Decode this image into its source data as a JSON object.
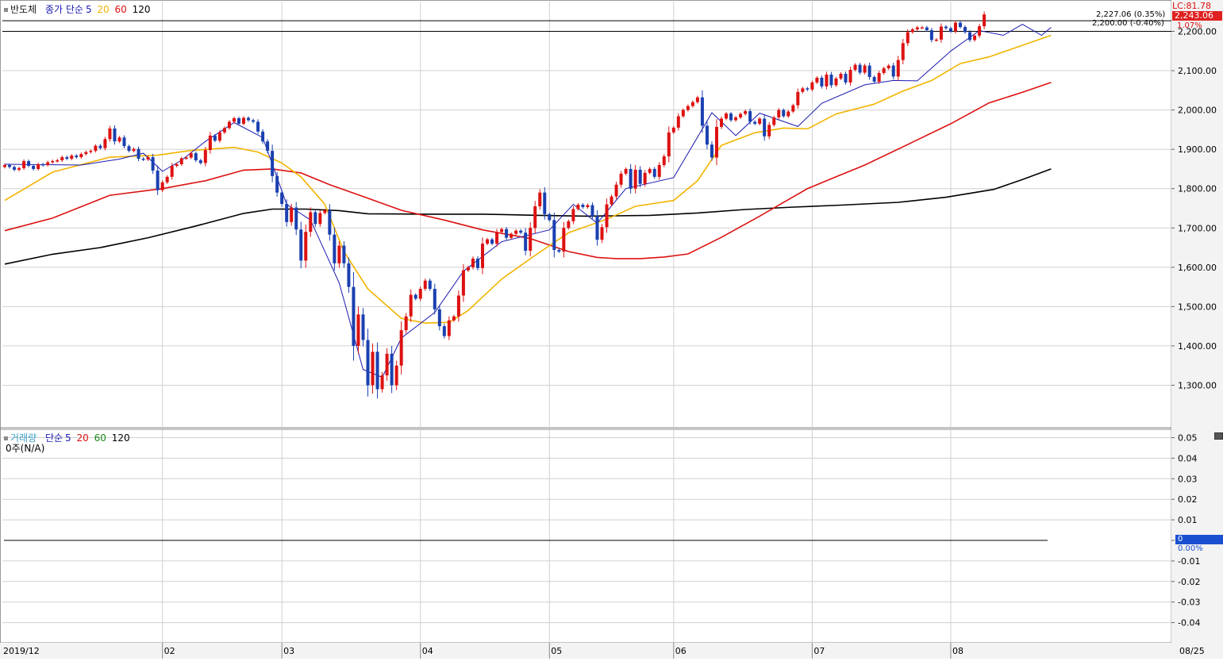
{
  "price_legend": {
    "name": "반도체",
    "type": "종가 단순",
    "p1": "5",
    "p2": "20",
    "p3": "60",
    "p4": "120",
    "colors": {
      "ma5": "#1a1ab0",
      "ma20": "#f2b400",
      "ma60": "#dd1111",
      "ma120": "#000000"
    }
  },
  "volume_legend": {
    "name": "거래량",
    "type": "단순",
    "p1": "5",
    "p2": "20",
    "p3": "60",
    "p4": "120",
    "value": "0주(N/A)"
  },
  "markers": {
    "lc": "LC:81.78",
    "current": "2,243.06",
    "change": "1.07%",
    "line_high": "2,227.06 (0.35%)",
    "line_low": "2,200.00 (-0.40%)"
  },
  "volume_zero": {
    "value": "0",
    "pct": "0.00%"
  },
  "colors": {
    "up": "#dd1111",
    "down": "#1a40b0",
    "grid": "#d0d0d0",
    "current_bg": "#e02020"
  },
  "chart_data": [
    {
      "type": "candlestick",
      "title": "반도체",
      "ylim": [
        1200,
        2290
      ],
      "y_ticks": [
        "1,300.00",
        "1,400.00",
        "1,500.00",
        "1,600.00",
        "1,700.00",
        "1,800.00",
        "1,900.00",
        "2,000.00",
        "2,100.00",
        "2,200.00"
      ],
      "y_tick_values": [
        1300,
        1400,
        1500,
        1600,
        1700,
        1800,
        1900,
        2000,
        2100,
        2200
      ],
      "x_labels": [
        {
          "label": "2019/12",
          "index": 0
        },
        {
          "label": "02",
          "index": 33
        },
        {
          "label": "03",
          "index": 58
        },
        {
          "label": "04",
          "index": 87
        },
        {
          "label": "05",
          "index": 114
        },
        {
          "label": "06",
          "index": 140
        },
        {
          "label": "07",
          "index": 169
        },
        {
          "label": "08",
          "index": 198
        },
        {
          "label": "08/25",
          "index": 245
        }
      ],
      "horizontal_lines": [
        2227.06,
        2200.0
      ],
      "close": [
        1860,
        1855,
        1848,
        1852,
        1870,
        1858,
        1850,
        1862,
        1860,
        1867,
        1870,
        1872,
        1880,
        1876,
        1884,
        1880,
        1888,
        1893,
        1896,
        1909,
        1903,
        1926,
        1953,
        1920,
        1930,
        1908,
        1896,
        1901,
        1876,
        1874,
        1880,
        1846,
        1796,
        1816,
        1830,
        1858,
        1862,
        1877,
        1879,
        1890,
        1872,
        1865,
        1898,
        1935,
        1922,
        1943,
        1954,
        1970,
        1979,
        1965,
        1980,
        1974,
        1970,
        1945,
        1920,
        1896,
        1832,
        1790,
        1761,
        1715,
        1752,
        1696,
        1617,
        1690,
        1740,
        1710,
        1738,
        1745,
        1683,
        1610,
        1655,
        1610,
        1550,
        1400,
        1480,
        1415,
        1300,
        1385,
        1290,
        1325,
        1380,
        1300,
        1350,
        1440,
        1475,
        1530,
        1520,
        1545,
        1566,
        1545,
        1493,
        1450,
        1425,
        1465,
        1475,
        1528,
        1592,
        1600,
        1622,
        1598,
        1660,
        1671,
        1660,
        1690,
        1697,
        1675,
        1685,
        1693,
        1688,
        1642,
        1700,
        1755,
        1790,
        1735,
        1720,
        1644,
        1640,
        1700,
        1717,
        1748,
        1759,
        1753,
        1758,
        1730,
        1670,
        1702,
        1760,
        1780,
        1810,
        1838,
        1850,
        1800,
        1848,
        1812,
        1840,
        1850,
        1830,
        1860,
        1882,
        1943,
        1955,
        1984,
        2000,
        2010,
        2020,
        2032,
        1960,
        1912,
        1879,
        1957,
        1978,
        1991,
        1974,
        1981,
        1990,
        1997,
        1970,
        1965,
        1978,
        1933,
        1962,
        1981,
        2000,
        1984,
        1996,
        2012,
        2046,
        2055,
        2052,
        2070,
        2082,
        2060,
        2090,
        2063,
        2080,
        2092,
        2070,
        2102,
        2115,
        2095,
        2113,
        2084,
        2072,
        2094,
        2106,
        2113,
        2085,
        2127,
        2170,
        2198,
        2205,
        2210,
        2210,
        2203,
        2178,
        2179,
        2212,
        2208,
        2200,
        2222,
        2211,
        2198,
        2178,
        2189,
        2213,
        2243
      ],
      "ma": [
        {
          "period": "5",
          "color": "#1a1ab0",
          "width": 1,
          "points": [
            [
              0,
              1862
            ],
            [
              16,
              1860
            ],
            [
              24,
              1875
            ],
            [
              29,
              1890
            ],
            [
              33,
              1844
            ],
            [
              37,
              1872
            ],
            [
              42,
              1920
            ],
            [
              48,
              1968
            ],
            [
              54,
              1930
            ],
            [
              59,
              1760
            ],
            [
              64,
              1720
            ],
            [
              70,
              1560
            ],
            [
              75,
              1340
            ],
            [
              79,
              1320
            ],
            [
              83,
              1420
            ],
            [
              90,
              1485
            ],
            [
              96,
              1590
            ],
            [
              104,
              1665
            ],
            [
              114,
              1695
            ],
            [
              119,
              1760
            ],
            [
              124,
              1712
            ],
            [
              130,
              1800
            ],
            [
              140,
              1828
            ],
            [
              148,
              1993
            ],
            [
              153,
              1935
            ],
            [
              158,
              1992
            ],
            [
              166,
              1958
            ],
            [
              171,
              2017
            ],
            [
              180,
              2064
            ],
            [
              186,
              2075
            ],
            [
              191,
              2074
            ],
            [
              198,
              2150
            ],
            [
              204,
              2202
            ],
            [
              209,
              2190
            ],
            [
              213,
              2218
            ],
            [
              217,
              2190
            ],
            [
              219,
              2210
            ]
          ]
        },
        {
          "period": "20",
          "color": "#f2b400",
          "width": 1.6,
          "points": [
            [
              0,
              1770
            ],
            [
              10,
              1842
            ],
            [
              22,
              1880
            ],
            [
              32,
              1885
            ],
            [
              39,
              1897
            ],
            [
              48,
              1905
            ],
            [
              53,
              1893
            ],
            [
              58,
              1865
            ],
            [
              62,
              1830
            ],
            [
              67,
              1760
            ],
            [
              71,
              1640
            ],
            [
              76,
              1545
            ],
            [
              83,
              1470
            ],
            [
              88,
              1458
            ],
            [
              93,
              1460
            ],
            [
              97,
              1490
            ],
            [
              104,
              1570
            ],
            [
              111,
              1630
            ],
            [
              118,
              1688
            ],
            [
              126,
              1722
            ],
            [
              132,
              1755
            ],
            [
              140,
              1770
            ],
            [
              145,
              1820
            ],
            [
              150,
              1910
            ],
            [
              157,
              1942
            ],
            [
              163,
              1954
            ],
            [
              168,
              1952
            ],
            [
              174,
              1990
            ],
            [
              182,
              2015
            ],
            [
              188,
              2048
            ],
            [
              194,
              2075
            ],
            [
              200,
              2118
            ],
            [
              206,
              2135
            ],
            [
              212,
              2160
            ],
            [
              219,
              2190
            ]
          ]
        },
        {
          "period": "60",
          "color": "#dd1111",
          "width": 1.6,
          "points": [
            [
              0,
              1693
            ],
            [
              10,
              1725
            ],
            [
              22,
              1783
            ],
            [
              33,
              1800
            ],
            [
              42,
              1820
            ],
            [
              50,
              1847
            ],
            [
              56,
              1850
            ],
            [
              62,
              1840
            ],
            [
              68,
              1810
            ],
            [
              75,
              1780
            ],
            [
              83,
              1745
            ],
            [
              92,
              1720
            ],
            [
              100,
              1695
            ],
            [
              110,
              1673
            ],
            [
              118,
              1640
            ],
            [
              124,
              1625
            ],
            [
              128,
              1622
            ],
            [
              133,
              1622
            ],
            [
              138,
              1626
            ],
            [
              143,
              1634
            ],
            [
              150,
              1676
            ],
            [
              158,
              1730
            ],
            [
              168,
              1800
            ],
            [
              174,
              1830
            ],
            [
              180,
              1860
            ],
            [
              190,
              1918
            ],
            [
              198,
              1965
            ],
            [
              206,
              2018
            ],
            [
              213,
              2045
            ],
            [
              219,
              2070
            ]
          ]
        },
        {
          "period": "120",
          "color": "#000000",
          "width": 1.6,
          "points": [
            [
              0,
              1608
            ],
            [
              10,
              1633
            ],
            [
              20,
              1650
            ],
            [
              30,
              1675
            ],
            [
              40,
              1705
            ],
            [
              50,
              1737
            ],
            [
              56,
              1748
            ],
            [
              63,
              1748
            ],
            [
              70,
              1744
            ],
            [
              76,
              1736
            ],
            [
              88,
              1735
            ],
            [
              100,
              1735
            ],
            [
              112,
              1732
            ],
            [
              122,
              1730
            ],
            [
              135,
              1732
            ],
            [
              145,
              1738
            ],
            [
              155,
              1747
            ],
            [
              165,
              1753
            ],
            [
              175,
              1758
            ],
            [
              187,
              1765
            ],
            [
              197,
              1778
            ],
            [
              207,
              1798
            ],
            [
              213,
              1823
            ],
            [
              219,
              1850
            ]
          ]
        }
      ]
    },
    {
      "type": "line",
      "title": "거래량",
      "ylim": [
        -0.05,
        0.05
      ],
      "y_ticks": [
        "0.05",
        "0.04",
        "0.03",
        "0.02",
        "0.01",
        "0",
        "-0.01",
        "-0.02",
        "-0.03",
        "-0.04"
      ],
      "y_tick_values": [
        0.05,
        0.04,
        0.03,
        0.02,
        0.01,
        0,
        -0.01,
        -0.02,
        -0.03,
        -0.04
      ],
      "values": [
        0
      ],
      "series_note": "0주(N/A)"
    }
  ]
}
